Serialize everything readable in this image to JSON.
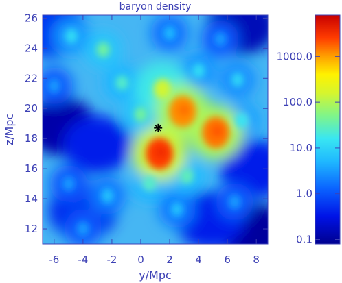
{
  "chart_data": {
    "type": "heatmap",
    "title": "baryon density",
    "xlabel": "y/Mpc",
    "ylabel": "z/Mpc",
    "xlim": [
      -6.8,
      8.8
    ],
    "ylim": [
      11,
      26.2
    ],
    "x_ticks": [
      -6,
      -4,
      -2,
      0,
      2,
      4,
      6,
      8
    ],
    "y_ticks": [
      12,
      14,
      16,
      18,
      20,
      22,
      24,
      26
    ],
    "x_tick_labels": [
      "-6",
      "-4",
      "-2",
      "0",
      "2",
      "4",
      "6",
      "8"
    ],
    "y_tick_labels": [
      "12",
      "14",
      "16",
      "18",
      "20",
      "22",
      "24",
      "26"
    ],
    "colorbar": {
      "scale": "log",
      "range": [
        0.08,
        8000
      ],
      "ticks": [
        0.1,
        1.0,
        10.0,
        100.0,
        1000.0
      ],
      "tick_labels": [
        "0.1",
        "1.0",
        "10.0",
        "100.0",
        "1000.0"
      ],
      "colormap": "rainbow"
    },
    "marker": {
      "symbol": "asterisk",
      "x": 1.2,
      "y": 18.7
    },
    "density_peaks": [
      {
        "x": 1.3,
        "y": 17.0,
        "value": 2500
      },
      {
        "x": 2.9,
        "y": 19.8,
        "value": 1200
      },
      {
        "x": 5.2,
        "y": 18.4,
        "value": 1500
      },
      {
        "x": 1.5,
        "y": 21.3,
        "value": 150
      },
      {
        "x": 0.0,
        "y": 19.6,
        "value": 40
      },
      {
        "x": -2.6,
        "y": 23.9,
        "value": 40
      },
      {
        "x": -1.3,
        "y": 21.7,
        "value": 25
      },
      {
        "x": -4.8,
        "y": 24.8,
        "value": 12
      },
      {
        "x": 0.6,
        "y": 15.0,
        "value": 25
      },
      {
        "x": 3.2,
        "y": 15.5,
        "value": 30
      },
      {
        "x": 7.0,
        "y": 19.2,
        "value": 15
      },
      {
        "x": 4.0,
        "y": 22.5,
        "value": 12
      },
      {
        "x": 6.7,
        "y": 21.9,
        "value": 10
      },
      {
        "x": -2.3,
        "y": 14.2,
        "value": 6
      },
      {
        "x": -5.0,
        "y": 15.0,
        "value": 3
      },
      {
        "x": 2.5,
        "y": 13.3,
        "value": 6
      },
      {
        "x": -4.0,
        "y": 12.0,
        "value": 3
      },
      {
        "x": 6.5,
        "y": 13.8,
        "value": 3
      },
      {
        "x": -6.0,
        "y": 21.5,
        "value": 3
      },
      {
        "x": 2.0,
        "y": 25.0,
        "value": 5
      },
      {
        "x": 5.5,
        "y": 24.6,
        "value": 3
      }
    ],
    "voids": [
      {
        "x": -5.5,
        "y": 18.8,
        "value": 0.12
      },
      {
        "x": 7.8,
        "y": 11.8,
        "value": 0.1
      },
      {
        "x": 7.0,
        "y": 25.5,
        "value": 0.15
      },
      {
        "x": -4.0,
        "y": 13.2,
        "value": 0.5
      },
      {
        "x": 4.8,
        "y": 12.6,
        "value": 0.4
      },
      {
        "x": -3.0,
        "y": 17.6,
        "value": 0.4
      },
      {
        "x": -6.2,
        "y": 25.3,
        "value": 0.6
      },
      {
        "x": 7.9,
        "y": 16.0,
        "value": 0.4
      }
    ]
  }
}
